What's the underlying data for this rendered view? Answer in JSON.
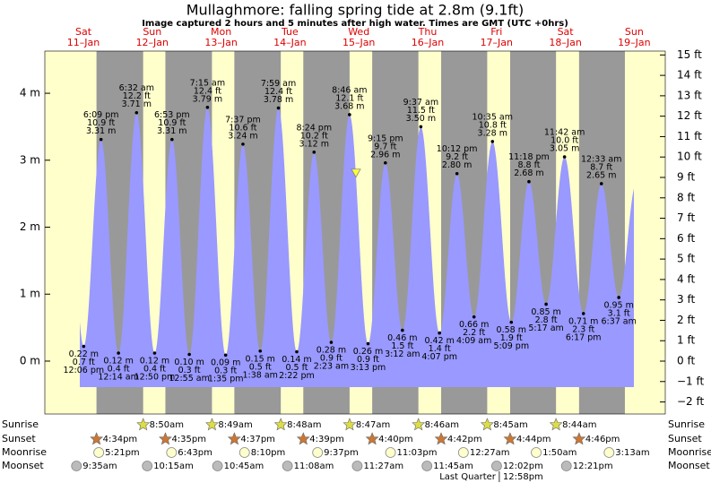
{
  "chart_data": {
    "type": "area",
    "title": "Mullaghmore: falling  spring tide at 2.8m (9.1ft)",
    "subtitle": "Image captured 2 hours and 5 minutes after high water. Times are GMT (UTC +0hrs)",
    "color": "#9999ff",
    "marker": {
      "value": 2.8,
      "color": "#ffff33"
    },
    "ylim": [
      -0.79,
      4.63
    ],
    "yticks": [
      {
        "value": 0,
        "label": "0 m"
      },
      {
        "value": 1,
        "label": "1 m"
      },
      {
        "value": 2,
        "label": "2 m"
      },
      {
        "value": 3,
        "label": "3 m"
      },
      {
        "value": 4,
        "label": "4 m"
      }
    ],
    "y2lim": [
      -2.59,
      15.19
    ],
    "y2ticks": [
      {
        "value": -2,
        "label": "−2 ft"
      },
      {
        "value": -1,
        "label": "−1 ft"
      },
      {
        "value": 0,
        "label": "0 ft"
      },
      {
        "value": 1,
        "label": "1 ft"
      },
      {
        "value": 2,
        "label": "2 ft"
      },
      {
        "value": 3,
        "label": "3 ft"
      },
      {
        "value": 4,
        "label": "4 ft"
      },
      {
        "value": 5,
        "label": "5 ft"
      },
      {
        "value": 6,
        "label": "6 ft"
      },
      {
        "value": 7,
        "label": "7 ft"
      },
      {
        "value": 8,
        "label": "8 ft"
      },
      {
        "value": 9,
        "label": "9 ft"
      },
      {
        "value": 10,
        "label": "10 ft"
      },
      {
        "value": 11,
        "label": "11 ft"
      },
      {
        "value": 12,
        "label": "12 ft"
      },
      {
        "value": 13,
        "label": "13 ft"
      },
      {
        "value": 14,
        "label": "14 ft"
      },
      {
        "value": 15,
        "label": "15 ft"
      }
    ],
    "row_labels": {
      "sunrise": "Sunrise",
      "sunset": "Sunset",
      "moonrise": "Moonrise",
      "moonset": "Moonset"
    },
    "days": [
      {
        "label": "Sat",
        "date": "11–Jan",
        "sunset": "4:34pm",
        "moonrise": "5:21pm",
        "moonset": "9:35am",
        "tides": [
          {
            "time": "12:06 pm",
            "value": 0.22,
            "value_label": "0.22 m",
            "feet": "0.7 ft"
          },
          {
            "time": "6:09 pm",
            "value": 3.31,
            "value_label": "3.31 m",
            "feet": "10.9 ft"
          }
        ]
      },
      {
        "label": "Sun",
        "date": "12–Jan",
        "sunrise": "8:50am",
        "sunset": "4:35pm",
        "moonrise": "6:43pm",
        "moonset": "10:15am",
        "tides": [
          {
            "time": "12:14 am",
            "value": 0.12,
            "value_label": "0.12 m",
            "feet": "0.4 ft"
          },
          {
            "time": "6:32 am",
            "value": 3.71,
            "value_label": "3.71 m",
            "feet": "12.2 ft"
          },
          {
            "time": "12:50 pm",
            "value": 0.12,
            "value_label": "0.12 m",
            "feet": "0.4 ft"
          },
          {
            "time": "6:53 pm",
            "value": 3.31,
            "value_label": "3.31 m",
            "feet": "10.9 ft"
          }
        ]
      },
      {
        "label": "Mon",
        "date": "13–Jan",
        "sunrise": "8:49am",
        "sunset": "4:37pm",
        "moonrise": "8:10pm",
        "moonset": "10:45am",
        "tides": [
          {
            "time": "12:55 am",
            "value": 0.1,
            "value_label": "0.10 m",
            "feet": "0.3 ft"
          },
          {
            "time": "7:15 am",
            "value": 3.79,
            "value_label": "3.79 m",
            "feet": "12.4 ft"
          },
          {
            "time": "1:35 pm",
            "value": 0.09,
            "value_label": "0.09 m",
            "feet": "0.3 ft"
          },
          {
            "time": "7:37 pm",
            "value": 3.24,
            "value_label": "3.24 m",
            "feet": "10.6 ft"
          }
        ]
      },
      {
        "label": "Tue",
        "date": "14–Jan",
        "sunrise": "8:48am",
        "sunset": "4:39pm",
        "moonrise": "9:37pm",
        "moonset": "11:08am",
        "tides": [
          {
            "time": "1:38 am",
            "value": 0.15,
            "value_label": "0.15 m",
            "feet": "0.5 ft"
          },
          {
            "time": "7:59 am",
            "value": 3.78,
            "value_label": "3.78 m",
            "feet": "12.4 ft"
          },
          {
            "time": "2:22 pm",
            "value": 0.14,
            "value_label": "0.14 m",
            "feet": "0.5 ft"
          },
          {
            "time": "8:24 pm",
            "value": 3.12,
            "value_label": "3.12 m",
            "feet": "10.2 ft"
          }
        ]
      },
      {
        "label": "Wed",
        "date": "15–Jan",
        "sunrise": "8:47am",
        "sunset": "4:40pm",
        "moonrise": "11:03pm",
        "moonset": "11:27am",
        "tides": [
          {
            "time": "2:23 am",
            "value": 0.28,
            "value_label": "0.28 m",
            "feet": "0.9 ft"
          },
          {
            "time": "8:46 am",
            "value": 3.68,
            "value_label": "3.68 m",
            "feet": "12.1 ft"
          },
          {
            "time": "3:13 pm",
            "value": 0.26,
            "value_label": "0.26 m",
            "feet": "0.9 ft"
          },
          {
            "time": "9:15 pm",
            "value": 2.96,
            "value_label": "2.96 m",
            "feet": "9.7 ft"
          }
        ]
      },
      {
        "label": "Thu",
        "date": "16–Jan",
        "sunrise": "8:46am",
        "sunset": "4:42pm",
        "moonset": "11:45am",
        "tides": [
          {
            "time": "3:12 am",
            "value": 0.46,
            "value_label": "0.46 m",
            "feet": "1.5 ft"
          },
          {
            "time": "9:37 am",
            "value": 3.5,
            "value_label": "3.50 m",
            "feet": "11.5 ft"
          },
          {
            "time": "4:07 pm",
            "value": 0.42,
            "value_label": "0.42 m",
            "feet": "1.4 ft"
          },
          {
            "time": "10:12 pm",
            "value": 2.8,
            "value_label": "2.80 m",
            "feet": "9.2 ft"
          }
        ]
      },
      {
        "label": "Fri",
        "date": "17–Jan",
        "sunrise": "8:45am",
        "sunset": "4:44pm",
        "moonrise": "12:27am",
        "moonset": "12:02pm",
        "moon_phase": {
          "name": "Last Quarter",
          "time": "12:58pm"
        },
        "tides": [
          {
            "time": "4:09 am",
            "value": 0.66,
            "value_label": "0.66 m",
            "feet": "2.2 ft"
          },
          {
            "time": "10:35 am",
            "value": 3.28,
            "value_label": "3.28 m",
            "feet": "10.8 ft"
          },
          {
            "time": "5:09 pm",
            "value": 0.58,
            "value_label": "0.58 m",
            "feet": "1.9 ft"
          },
          {
            "time": "11:18 pm",
            "value": 2.68,
            "value_label": "2.68 m",
            "feet": "8.8 ft"
          }
        ]
      },
      {
        "label": "Sat",
        "date": "18–Jan",
        "sunrise": "8:44am",
        "sunset": "4:46pm",
        "moonrise": "1:50am",
        "moonset": "12:21pm",
        "tides": [
          {
            "time": "5:17 am",
            "value": 0.85,
            "value_label": "0.85 m",
            "feet": "2.8 ft"
          },
          {
            "time": "11:42 am",
            "value": 3.05,
            "value_label": "3.05 m",
            "feet": "10.0 ft"
          },
          {
            "time": "6:17 pm",
            "value": 0.71,
            "value_label": "0.71 m",
            "feet": "2.3 ft"
          }
        ]
      },
      {
        "label": "Sun",
        "date": "19–Jan",
        "moonrise": "3:13am",
        "tides": [
          {
            "time": "12:33 am",
            "value": 2.65,
            "value_label": "2.65 m",
            "feet": "8.7 ft"
          },
          {
            "time": "6:37 am",
            "value": 0.95,
            "value_label": "0.95 m",
            "feet": "3.1 ft"
          }
        ]
      }
    ]
  }
}
